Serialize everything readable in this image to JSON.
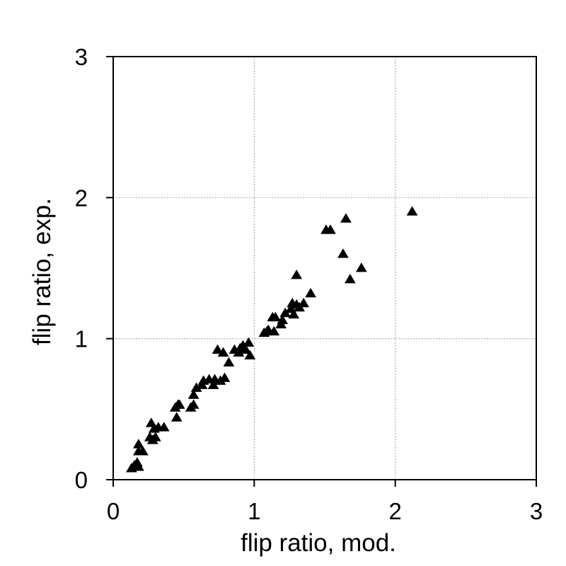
{
  "chart_data": {
    "type": "scatter",
    "title": "",
    "xlabel": "flip ratio, mod.",
    "ylabel": "flip ratio, exp.",
    "xlim": [
      0,
      3
    ],
    "ylim": [
      0,
      3
    ],
    "xticks": [
      "0",
      "1",
      "2",
      "3"
    ],
    "yticks": [
      "0",
      "1",
      "2",
      "3"
    ],
    "grid": true,
    "legend": "none",
    "marker": "triangle",
    "marker_color": "#000000",
    "series": [
      {
        "points": [
          [
            0.13,
            0.08
          ],
          [
            0.15,
            0.1
          ],
          [
            0.17,
            0.12
          ],
          [
            0.18,
            0.09
          ],
          [
            0.18,
            0.2
          ],
          [
            0.18,
            0.25
          ],
          [
            0.21,
            0.2
          ],
          [
            0.26,
            0.3
          ],
          [
            0.27,
            0.4
          ],
          [
            0.28,
            0.28
          ],
          [
            0.29,
            0.36
          ],
          [
            0.3,
            0.3
          ],
          [
            0.32,
            0.37
          ],
          [
            0.36,
            0.37
          ],
          [
            0.44,
            0.51
          ],
          [
            0.45,
            0.44
          ],
          [
            0.46,
            0.53
          ],
          [
            0.47,
            0.53
          ],
          [
            0.55,
            0.51
          ],
          [
            0.57,
            0.6
          ],
          [
            0.57,
            0.53
          ],
          [
            0.59,
            0.65
          ],
          [
            0.63,
            0.67
          ],
          [
            0.64,
            0.7
          ],
          [
            0.68,
            0.71
          ],
          [
            0.71,
            0.67
          ],
          [
            0.72,
            0.71
          ],
          [
            0.74,
            0.92
          ],
          [
            0.76,
            0.7
          ],
          [
            0.78,
            0.9
          ],
          [
            0.79,
            0.72
          ],
          [
            0.82,
            0.83
          ],
          [
            0.86,
            0.92
          ],
          [
            0.89,
            0.9
          ],
          [
            0.9,
            0.93
          ],
          [
            0.92,
            0.95
          ],
          [
            0.94,
            0.92
          ],
          [
            0.96,
            0.97
          ],
          [
            0.97,
            0.88
          ],
          [
            1.07,
            1.04
          ],
          [
            1.09,
            1.05
          ],
          [
            1.1,
            1.06
          ],
          [
            1.13,
            1.15
          ],
          [
            1.14,
            1.05
          ],
          [
            1.15,
            1.15
          ],
          [
            1.19,
            1.1
          ],
          [
            1.2,
            1.13
          ],
          [
            1.22,
            1.18
          ],
          [
            1.26,
            1.21
          ],
          [
            1.27,
            1.25
          ],
          [
            1.28,
            1.17
          ],
          [
            1.3,
            1.24
          ],
          [
            1.3,
            1.45
          ],
          [
            1.32,
            1.22
          ],
          [
            1.35,
            1.25
          ],
          [
            1.4,
            1.32
          ],
          [
            1.51,
            1.77
          ],
          [
            1.54,
            1.77
          ],
          [
            1.63,
            1.6
          ],
          [
            1.65,
            1.85
          ],
          [
            1.68,
            1.42
          ],
          [
            1.76,
            1.5
          ],
          [
            2.12,
            1.9
          ]
        ]
      }
    ]
  }
}
